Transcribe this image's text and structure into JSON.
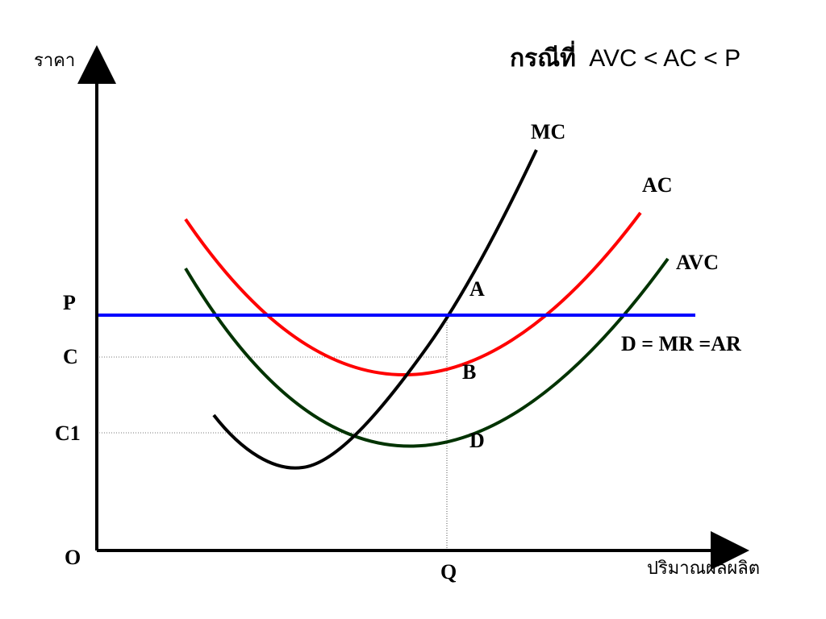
{
  "title": {
    "thai": "กรณีที่",
    "inequality": "AVC < AC < P"
  },
  "axes": {
    "y_label": "ราคา",
    "x_label": "ปริมาณผลผลิต",
    "origin_label": "O"
  },
  "price_levels": {
    "p": "P",
    "c": "C",
    "c1": "C1"
  },
  "quantity_label": "Q",
  "curves": {
    "mc": {
      "label": "MC",
      "color": "#000000"
    },
    "ac": {
      "label": "AC",
      "color": "#ff0000"
    },
    "avc": {
      "label": "AVC",
      "color": "#003300"
    },
    "demand": {
      "label": "D = MR =AR",
      "color": "#0000ff"
    }
  },
  "points": {
    "a": "A",
    "b": "B",
    "d": "D"
  }
}
